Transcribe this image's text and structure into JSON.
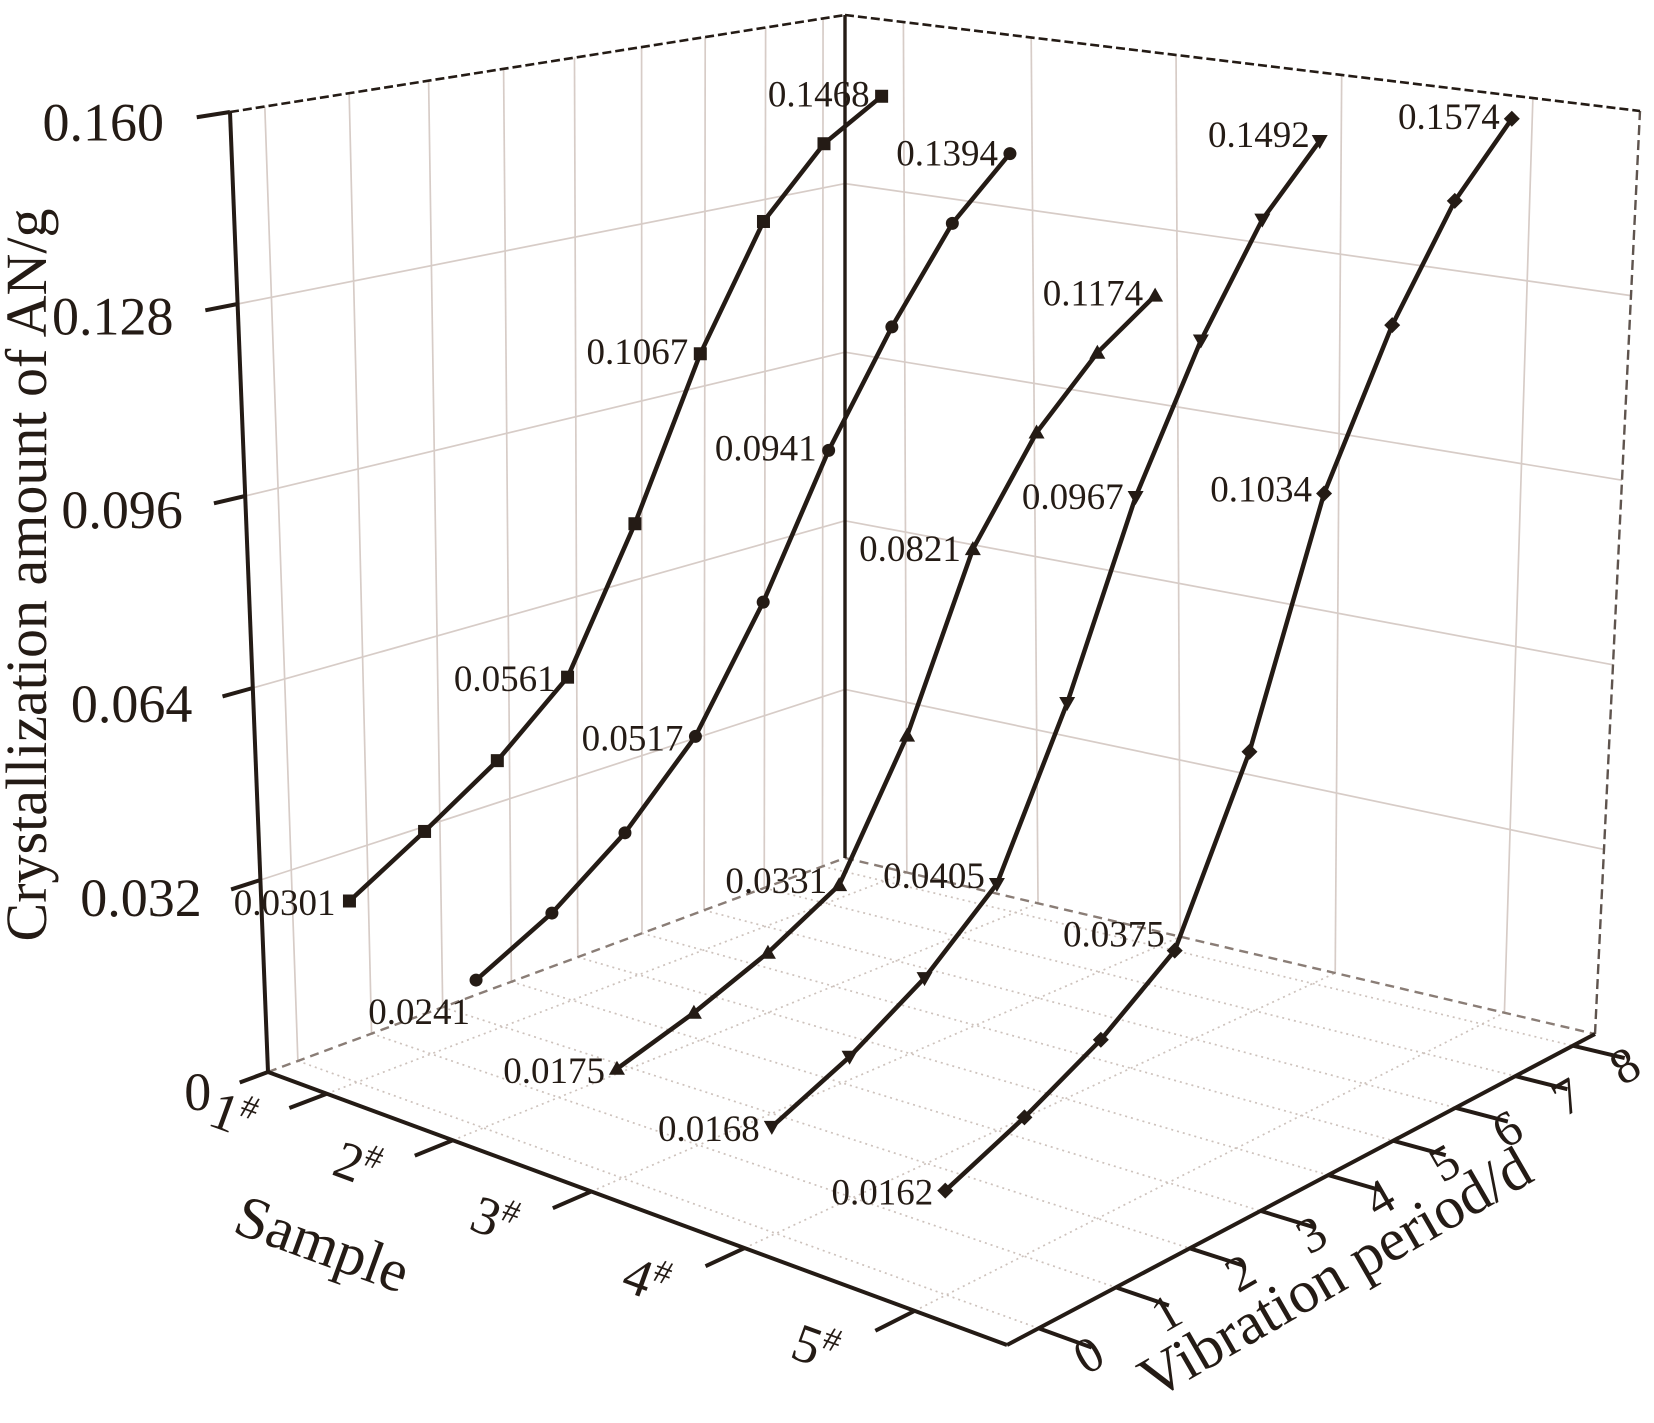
{
  "figure": {
    "background": "#ffffff",
    "ink_color": "#241b15",
    "wall_grid_color": "#d7ccc7",
    "floor_grid_color": "#cdc2bc",
    "junction_color": "#8a7d76"
  },
  "chart_data": {
    "type": "line",
    "projection": "3d",
    "title": "",
    "ylabel": "Crystallization amount of AN/g",
    "xlabel": "Sample",
    "zlabel": "Vibration period/d",
    "ylim": [
      0,
      0.16
    ],
    "y_tick_values": [
      0,
      0.032,
      0.064,
      0.096,
      0.128,
      0.16
    ],
    "y_tick_labels": [
      "0",
      "0.032",
      "0.064",
      "0.096",
      "0.128",
      "0.160"
    ],
    "z_tick_labels": [
      "0",
      "1",
      "2",
      "3",
      "4",
      "5",
      "6",
      "7",
      "8"
    ],
    "days": [
      0,
      1,
      2,
      3,
      4,
      5,
      6,
      7,
      8
    ],
    "x_categories": [
      {
        "display": "1#",
        "base": "1",
        "sup": "#"
      },
      {
        "display": "2#",
        "base": "2",
        "sup": "#"
      },
      {
        "display": "3#",
        "base": "3",
        "sup": "#"
      },
      {
        "display": "4#",
        "base": "4",
        "sup": "#"
      },
      {
        "display": "5#",
        "base": "5",
        "sup": "#"
      }
    ],
    "legend": {
      "visible": false
    },
    "grid": true,
    "series": [
      {
        "name": "1#",
        "marker": "square",
        "values": [
          0.0301,
          0.0375,
          0.0455,
          0.0561,
          0.0795,
          0.1067,
          0.128,
          0.14,
          0.1468
        ],
        "point_labels": [
          {
            "day": 0,
            "text": "0.0301",
            "dx": -14,
            "dy": 14
          },
          {
            "day": 3,
            "text": "0.0561",
            "dx": -12,
            "dy": 14
          },
          {
            "day": 5,
            "text": "0.1067",
            "dx": -12,
            "dy": 10
          },
          {
            "day": 8,
            "text": "0.1468",
            "dx": -12,
            "dy": 10
          }
        ]
      },
      {
        "name": "2#",
        "marker": "circle",
        "values": [
          0.0241,
          0.0305,
          0.0395,
          0.0517,
          0.071,
          0.0941,
          0.113,
          0.129,
          0.1394
        ],
        "point_labels": [
          {
            "day": 0,
            "text": "0.0241",
            "dx": -6,
            "dy": 44
          },
          {
            "day": 3,
            "text": "0.0517",
            "dx": -12,
            "dy": 14
          },
          {
            "day": 5,
            "text": "0.0941",
            "dx": -12,
            "dy": 10
          },
          {
            "day": 8,
            "text": "0.1394",
            "dx": -12,
            "dy": 12
          }
        ]
      },
      {
        "name": "3#",
        "marker": "triangle-up",
        "values": [
          0.0175,
          0.0215,
          0.0265,
          0.0331,
          0.054,
          0.0821,
          0.099,
          0.11,
          0.1174
        ],
        "point_labels": [
          {
            "day": 0,
            "text": "0.0175",
            "dx": -12,
            "dy": 14
          },
          {
            "day": 3,
            "text": "0.0331",
            "dx": -12,
            "dy": 8
          },
          {
            "day": 5,
            "text": "0.0821",
            "dx": -12,
            "dy": 12
          },
          {
            "day": 8,
            "text": "0.1174",
            "dx": -12,
            "dy": 10
          }
        ]
      },
      {
        "name": "4#",
        "marker": "triangle-down",
        "values": [
          0.0168,
          0.0225,
          0.03,
          0.0405,
          0.066,
          0.0967,
          0.12,
          0.138,
          0.1492
        ],
        "point_labels": [
          {
            "day": 0,
            "text": "0.0168",
            "dx": -12,
            "dy": 14
          },
          {
            "day": 3,
            "text": "0.0405",
            "dx": -12,
            "dy": 4
          },
          {
            "day": 5,
            "text": "0.0967",
            "dx": -12,
            "dy": 12
          },
          {
            "day": 8,
            "text": "0.1492",
            "dx": -10,
            "dy": 6
          }
        ]
      },
      {
        "name": "5#",
        "marker": "diamond",
        "values": [
          0.0162,
          0.0218,
          0.0285,
          0.0375,
          0.065,
          0.1034,
          0.128,
          0.146,
          0.1574
        ],
        "point_labels": [
          {
            "day": 0,
            "text": "0.0162",
            "dx": -12,
            "dy": 14
          },
          {
            "day": 3,
            "text": "0.0375",
            "dx": -10,
            "dy": -4
          },
          {
            "day": 5,
            "text": "0.1034",
            "dx": -12,
            "dy": 8
          },
          {
            "day": 8,
            "text": "0.1574",
            "dx": -12,
            "dy": 10
          }
        ]
      }
    ]
  }
}
